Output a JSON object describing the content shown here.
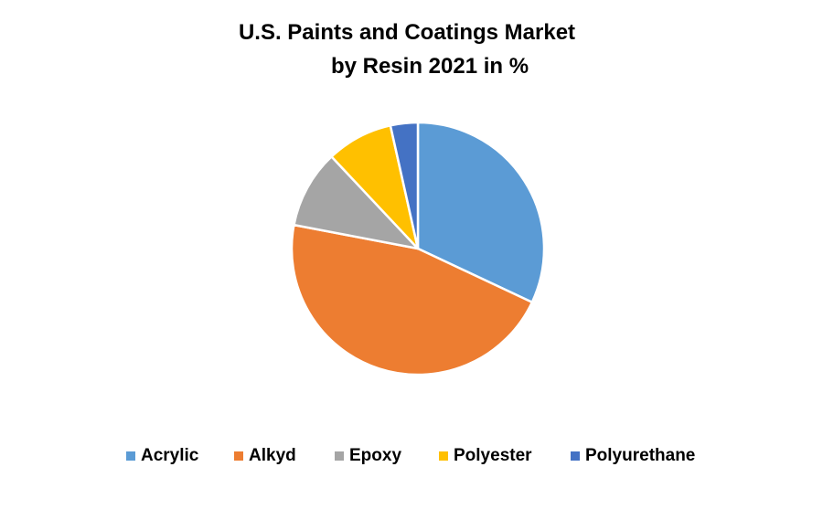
{
  "chart_data": {
    "type": "pie",
    "title_lines": [
      "U.S. Paints and Coatings Market",
      "by Resin 2021 in %"
    ],
    "categories": [
      "Acrylic",
      "Alkyd",
      "Epoxy",
      "Polyester",
      "Polyurethane"
    ],
    "values": [
      32,
      46,
      10,
      8.5,
      3.5
    ],
    "colors": [
      "#5B9BD5",
      "#ED7D31",
      "#A5A5A5",
      "#FFC000",
      "#4472C4"
    ],
    "legend_position": "bottom"
  }
}
